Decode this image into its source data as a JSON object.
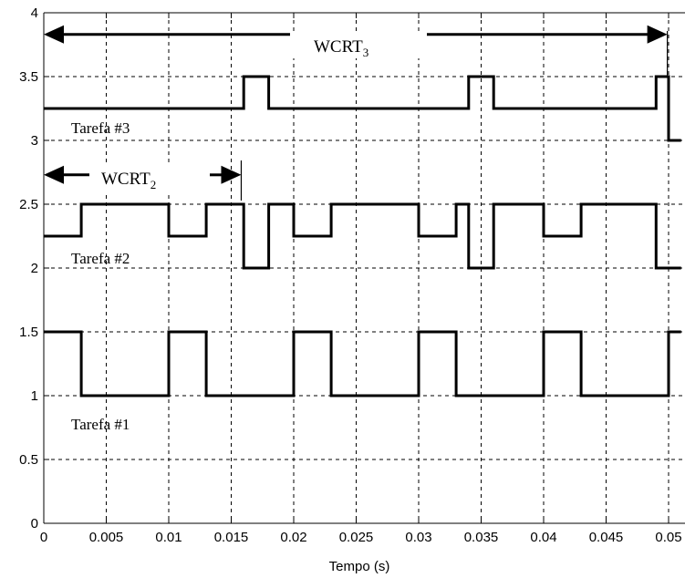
{
  "chart_data": {
    "type": "line",
    "xlabel": "Tempo (s)",
    "ylabel": "",
    "title": "",
    "xlim": [
      0,
      0.051
    ],
    "ylim": [
      0,
      4
    ],
    "grid": true,
    "x_ticks": [
      "0",
      "0.005",
      "0.01",
      "0.015",
      "0.02",
      "0.025",
      "0.03",
      "0.035",
      "0.04",
      "0.045",
      "0.05"
    ],
    "y_ticks": [
      "0",
      "0.5",
      "1",
      "1.5",
      "2",
      "2.5",
      "3",
      "3.5",
      "4"
    ],
    "series": [
      {
        "name": "Tarefa #1",
        "points": [
          [
            0,
            1.5
          ],
          [
            0.003,
            1.5
          ],
          [
            0.003,
            1
          ],
          [
            0.01,
            1
          ],
          [
            0.01,
            1.5
          ],
          [
            0.013,
            1.5
          ],
          [
            0.013,
            1
          ],
          [
            0.02,
            1
          ],
          [
            0.02,
            1.5
          ],
          [
            0.023,
            1.5
          ],
          [
            0.023,
            1
          ],
          [
            0.03,
            1
          ],
          [
            0.03,
            1.5
          ],
          [
            0.033,
            1.5
          ],
          [
            0.033,
            1
          ],
          [
            0.04,
            1
          ],
          [
            0.04,
            1.5
          ],
          [
            0.043,
            1.5
          ],
          [
            0.043,
            1
          ],
          [
            0.05,
            1
          ],
          [
            0.05,
            1.5
          ],
          [
            0.051,
            1.5
          ]
        ]
      },
      {
        "name": "Tarefa #2",
        "points": [
          [
            0,
            2.25
          ],
          [
            0.003,
            2.25
          ],
          [
            0.003,
            2.5
          ],
          [
            0.01,
            2.5
          ],
          [
            0.01,
            2.25
          ],
          [
            0.013,
            2.25
          ],
          [
            0.013,
            2.5
          ],
          [
            0.016,
            2.5
          ],
          [
            0.016,
            2
          ],
          [
            0.018,
            2
          ],
          [
            0.018,
            2.5
          ],
          [
            0.02,
            2.5
          ],
          [
            0.02,
            2.25
          ],
          [
            0.023,
            2.25
          ],
          [
            0.023,
            2.5
          ],
          [
            0.03,
            2.5
          ],
          [
            0.03,
            2.25
          ],
          [
            0.033,
            2.25
          ],
          [
            0.033,
            2.5
          ],
          [
            0.034,
            2.5
          ],
          [
            0.034,
            2
          ],
          [
            0.036,
            2
          ],
          [
            0.036,
            2.5
          ],
          [
            0.04,
            2.5
          ],
          [
            0.04,
            2.25
          ],
          [
            0.043,
            2.25
          ],
          [
            0.043,
            2.5
          ],
          [
            0.049,
            2.5
          ],
          [
            0.049,
            2
          ],
          [
            0.051,
            2
          ]
        ]
      },
      {
        "name": "Tarefa #3",
        "points": [
          [
            0,
            3.25
          ],
          [
            0.016,
            3.25
          ],
          [
            0.016,
            3.5
          ],
          [
            0.018,
            3.5
          ],
          [
            0.018,
            3.25
          ],
          [
            0.034,
            3.25
          ],
          [
            0.034,
            3.5
          ],
          [
            0.036,
            3.5
          ],
          [
            0.036,
            3.25
          ],
          [
            0.049,
            3.25
          ],
          [
            0.049,
            3.5
          ],
          [
            0.05,
            3.5
          ],
          [
            0.05,
            3
          ],
          [
            0.051,
            3
          ]
        ]
      }
    ],
    "annotations": {
      "wcrt3": {
        "label": "WCRT",
        "subscript": "3",
        "x_start": 0,
        "x_end": 0.0499,
        "y": 3.83
      },
      "wcrt2": {
        "label": "WCRT",
        "subscript": "2",
        "x_start": 0,
        "x_end": 0.0158,
        "y": 2.73
      }
    }
  }
}
